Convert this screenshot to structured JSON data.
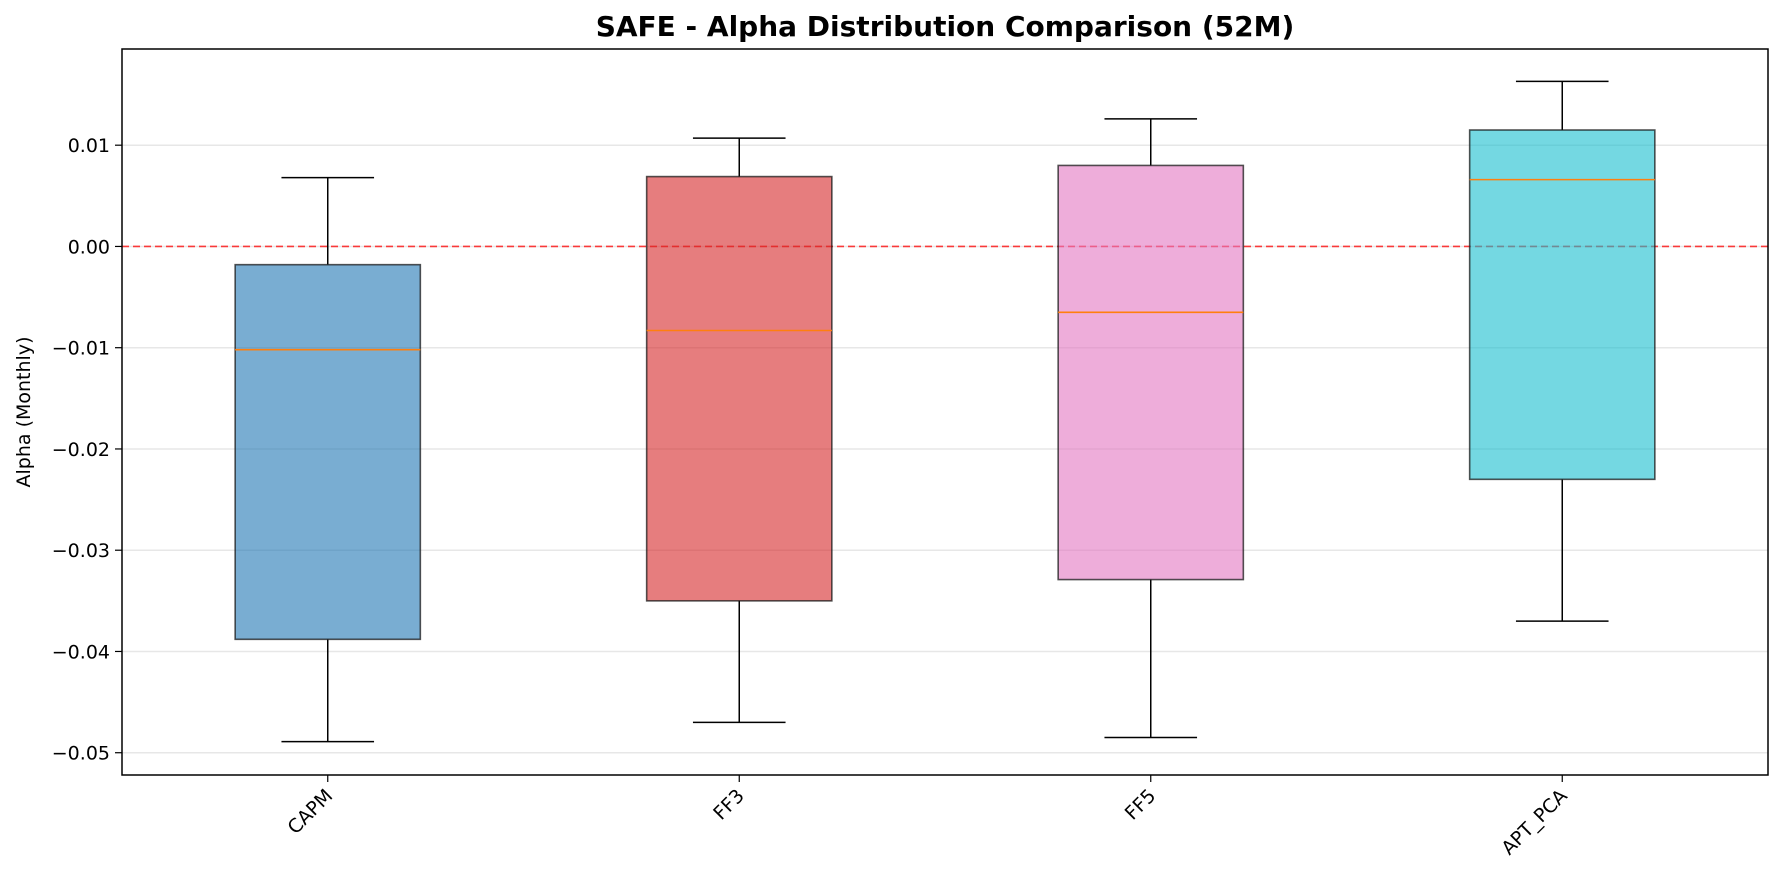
{
  "chart_data": {
    "type": "box",
    "title": "SAFE - Alpha Distribution Comparison (52M)",
    "xlabel": "",
    "ylabel": "Alpha (Monthly)",
    "ylim": [
      -0.0522,
      0.0195
    ],
    "yticks": [
      0.01,
      0.0,
      -0.01,
      -0.02,
      -0.03,
      -0.04,
      -0.05
    ],
    "ytick_labels": [
      "0.01",
      "0.00",
      "−0.01",
      "−0.02",
      "−0.03",
      "−0.04",
      "−0.05"
    ],
    "categories": [
      "CAPM",
      "FF3",
      "FF5",
      "APT_PCA"
    ],
    "boxes": [
      {
        "category": "CAPM",
        "whisker_low": -0.0489,
        "q1": -0.0388,
        "median": -0.0102,
        "q3": -0.0018,
        "whisker_high": 0.0068,
        "color": "#1f77b4"
      },
      {
        "category": "FF3",
        "whisker_low": -0.047,
        "q1": -0.035,
        "median": -0.0083,
        "q3": 0.0069,
        "whisker_high": 0.0107,
        "color": "#d62728"
      },
      {
        "category": "FF5",
        "whisker_low": -0.0485,
        "q1": -0.0329,
        "median": -0.0065,
        "q3": 0.008,
        "whisker_high": 0.0126,
        "color": "#e377c2"
      },
      {
        "category": "APT_PCA",
        "whisker_low": -0.037,
        "q1": -0.023,
        "median": 0.0066,
        "q3": 0.0115,
        "whisker_high": 0.0163,
        "color": "#17becf"
      }
    ],
    "reference_line": {
      "y": 0.0,
      "style": "dashed",
      "color": "#ff0000"
    },
    "grid": {
      "y": true,
      "x": false
    },
    "median_color": "#ff7f0e",
    "legend": "none"
  }
}
